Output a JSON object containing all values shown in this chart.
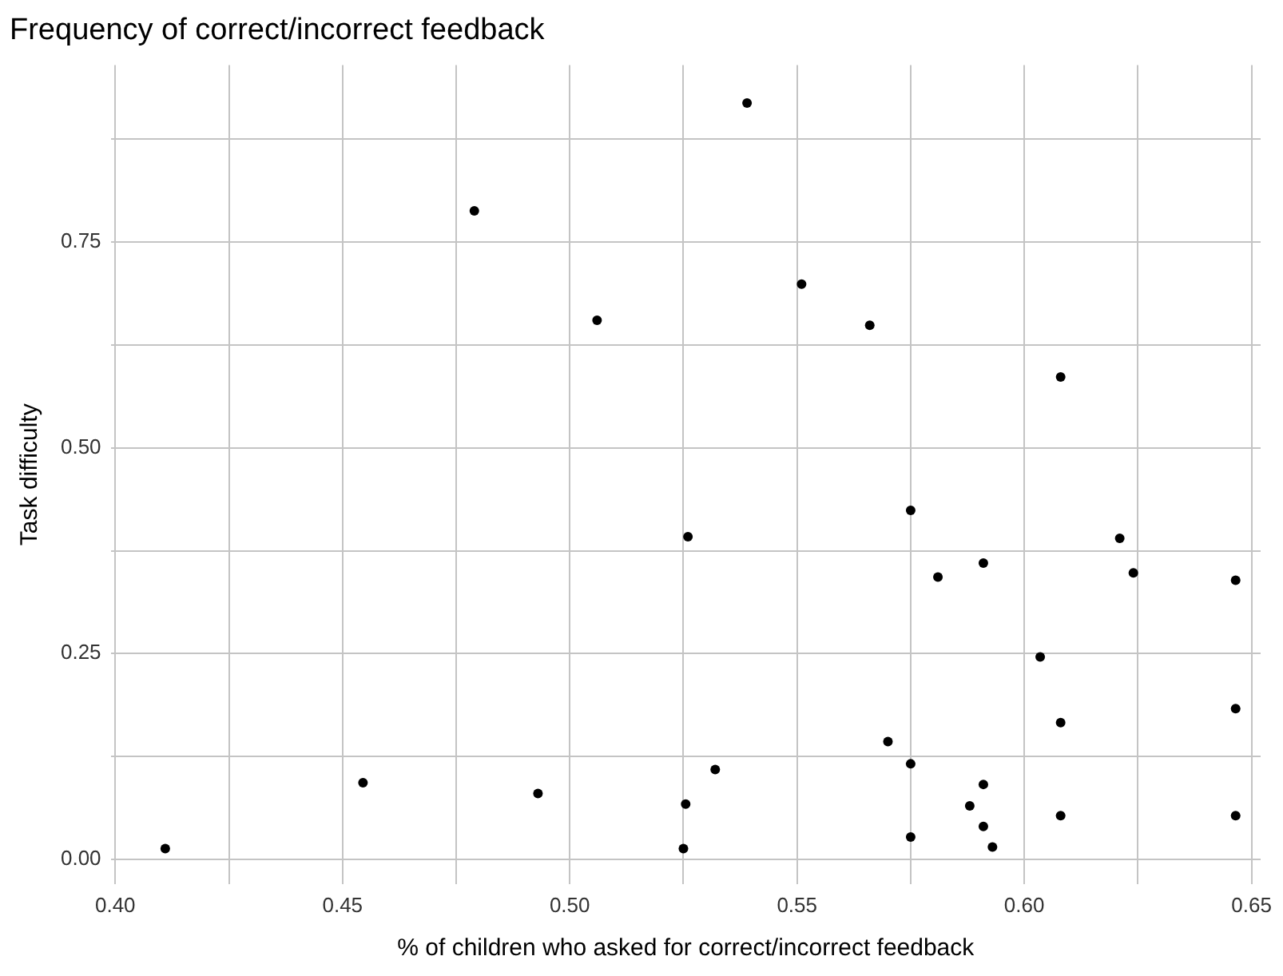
{
  "chart_data": {
    "type": "scatter",
    "title": "Frequency of correct/incorrect feedback",
    "xlabel": "% of children who asked for correct/incorrect feedback",
    "ylabel": "Task difficulty",
    "x": [
      0.411,
      0.4545,
      0.479,
      0.493,
      0.506,
      0.525,
      0.5255,
      0.526,
      0.532,
      0.539,
      0.551,
      0.566,
      0.57,
      0.575,
      0.575,
      0.575,
      0.581,
      0.588,
      0.591,
      0.591,
      0.591,
      0.593,
      0.6035,
      0.608,
      0.608,
      0.608,
      0.621,
      0.624,
      0.6465,
      0.6465,
      0.6465
    ],
    "series": [
      {
        "color": "#000000",
        "values": [
          0.013,
          0.093,
          0.788,
          0.08,
          0.655,
          0.013,
          0.067,
          0.392,
          0.109,
          0.919,
          0.699,
          0.649,
          0.143,
          0.424,
          0.116,
          0.027,
          0.343,
          0.065,
          0.36,
          0.091,
          0.04,
          0.015,
          0.246,
          0.166,
          0.586,
          0.053,
          0.39,
          0.348,
          0.339,
          0.183,
          0.053
        ]
      }
    ],
    "xlim": [
      0.399,
      0.652
    ],
    "ylim": [
      -0.03,
      0.965
    ],
    "xticks": [
      {
        "value": 0.4,
        "label": "0.40"
      },
      {
        "value": 0.425,
        "label": null
      },
      {
        "value": 0.45,
        "label": "0.45"
      },
      {
        "value": 0.475,
        "label": null
      },
      {
        "value": 0.5,
        "label": "0.50"
      },
      {
        "value": 0.525,
        "label": null
      },
      {
        "value": 0.55,
        "label": "0.55"
      },
      {
        "value": 0.575,
        "label": null
      },
      {
        "value": 0.6,
        "label": "0.60"
      },
      {
        "value": 0.625,
        "label": null
      },
      {
        "value": 0.65,
        "label": "0.65"
      }
    ],
    "yticks": [
      {
        "value": 0,
        "label": "0.00"
      },
      {
        "value": 0.125,
        "label": null
      },
      {
        "value": 0.25,
        "label": "0.25"
      },
      {
        "value": 0.375,
        "label": null
      },
      {
        "value": 0.5,
        "label": "0.50"
      },
      {
        "value": 0.625,
        "label": null
      },
      {
        "value": 0.75,
        "label": "0.75"
      },
      {
        "value": 0.875,
        "label": null
      }
    ],
    "grid": true,
    "marker": "circle",
    "legend": false
  }
}
